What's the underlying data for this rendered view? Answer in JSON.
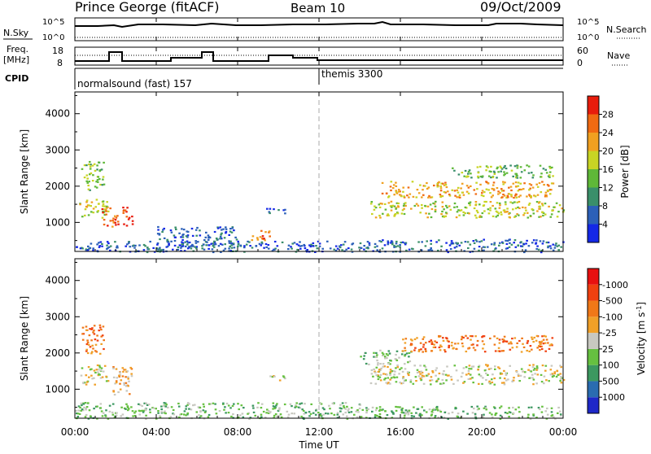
{
  "header": {
    "station": "Prince George (fitACF)",
    "beam": "Beam 10",
    "date": "09/Oct/2009"
  },
  "nsky_panel": {
    "left_label": "N.Sky",
    "right_label": "N.Search",
    "yticks_left": [
      "10^5",
      "10^0"
    ],
    "yticks_right": [
      "10^5",
      "10^0"
    ]
  },
  "freq_panel": {
    "left_label_line1": "Freq.",
    "left_label_line2": "[MHz]",
    "right_label": "Nave",
    "yticks_left": [
      "18",
      "8"
    ],
    "yticks_right": [
      "60",
      "0"
    ]
  },
  "cpid_panel": {
    "label": "CPID",
    "segments": [
      {
        "name": "normalsound (fast) 157",
        "start_hour": 0
      },
      {
        "name": "themis 3300",
        "start_hour": 12
      }
    ]
  },
  "time_axis": {
    "label": "Time UT",
    "ticks": [
      "00:00",
      "04:00",
      "08:00",
      "12:00",
      "16:00",
      "20:00",
      "00:00"
    ]
  },
  "power_colorbar": {
    "label": "Power [dB]",
    "ticks": [
      "4",
      "8",
      "12",
      "16",
      "20",
      "24",
      "28"
    ],
    "colors": [
      "#1428e6",
      "#2c60b8",
      "#3a8f6a",
      "#5fb838",
      "#c8d424",
      "#f0a020",
      "#f06a12",
      "#e81c0c"
    ]
  },
  "velocity_colorbar": {
    "label": "Velocity [m s",
    "label_sup": "-1",
    "label_close": "]",
    "ticks": [
      "1000",
      "500",
      "100",
      "25",
      "-25",
      "-100",
      "-500",
      "-1000"
    ],
    "colors": [
      "#1e28c8",
      "#2a6cb0",
      "#3c9860",
      "#66c040",
      "#c8c8c0",
      "#f0a028",
      "#f07818",
      "#f04010",
      "#e81010"
    ]
  },
  "chart_data": [
    {
      "type": "heatmap",
      "title": "Power",
      "xlabel": "",
      "ylabel": "Slant Range [km]",
      "xlim_hours": [
        0,
        24
      ],
      "ylim_km": [
        200,
        4600
      ],
      "yticks": [
        1000,
        2000,
        3000,
        4000
      ],
      "colorbar": "Power [dB]",
      "patches": [
        {
          "t0": 0.2,
          "t1": 1.6,
          "r0": 1150,
          "r1": 1700,
          "level": 4
        },
        {
          "t0": 0.3,
          "t1": 1.4,
          "r0": 1900,
          "r1": 2700,
          "level": 3
        },
        {
          "t0": 1.3,
          "t1": 2.1,
          "r0": 850,
          "r1": 1450,
          "level": 6
        },
        {
          "t0": 2.3,
          "t1": 2.8,
          "r0": 850,
          "r1": 1450,
          "level": 7
        },
        {
          "t0": 4.0,
          "t1": 8.0,
          "r0": 300,
          "r1": 900,
          "level": 1
        },
        {
          "t0": 8.6,
          "t1": 9.6,
          "r0": 500,
          "r1": 800,
          "level": 6
        },
        {
          "t0": 9.4,
          "t1": 10.6,
          "r0": 1250,
          "r1": 1400,
          "level": 1
        },
        {
          "t0": 0.0,
          "t1": 14.0,
          "r0": 200,
          "r1": 500,
          "level": 1
        },
        {
          "t0": 14.5,
          "t1": 24.0,
          "r0": 1150,
          "r1": 1600,
          "level": 4
        },
        {
          "t0": 15.0,
          "t1": 23.5,
          "r0": 1700,
          "r1": 2150,
          "level": 5
        },
        {
          "t0": 18.5,
          "t1": 23.5,
          "r0": 2250,
          "r1": 2600,
          "level": 3
        },
        {
          "t0": 14.0,
          "t1": 24.0,
          "r0": 200,
          "r1": 550,
          "level": 1
        }
      ]
    },
    {
      "type": "heatmap",
      "title": "Velocity",
      "xlabel": "Time UT",
      "ylabel": "Slant Range [km]",
      "xlim_hours": [
        0,
        24
      ],
      "ylim_km": [
        200,
        4600
      ],
      "yticks": [
        1000,
        2000,
        3000,
        4000
      ],
      "colorbar": "Velocity [m s-1]",
      "patches": [
        {
          "t0": 0.2,
          "t1": 1.6,
          "r0": 1150,
          "r1": 1700,
          "level": 4
        },
        {
          "t0": 0.3,
          "t1": 1.4,
          "r0": 2000,
          "r1": 2800,
          "level": 6
        },
        {
          "t0": 1.8,
          "t1": 2.8,
          "r0": 850,
          "r1": 1700,
          "level": 5
        },
        {
          "t0": 9.5,
          "t1": 10.6,
          "r0": 1250,
          "r1": 1400,
          "level": 4
        },
        {
          "t0": 0.0,
          "t1": 14.0,
          "r0": 200,
          "r1": 650,
          "level": 3
        },
        {
          "t0": 14.5,
          "t1": 24.0,
          "r0": 1150,
          "r1": 1700,
          "level": 4
        },
        {
          "t0": 14.0,
          "t1": 16.5,
          "r0": 1700,
          "r1": 2100,
          "level": 3
        },
        {
          "t0": 16.0,
          "t1": 23.5,
          "r0": 2050,
          "r1": 2500,
          "level": 6
        },
        {
          "t0": 14.0,
          "t1": 24.0,
          "r0": 200,
          "r1": 550,
          "level": 3
        }
      ]
    }
  ]
}
